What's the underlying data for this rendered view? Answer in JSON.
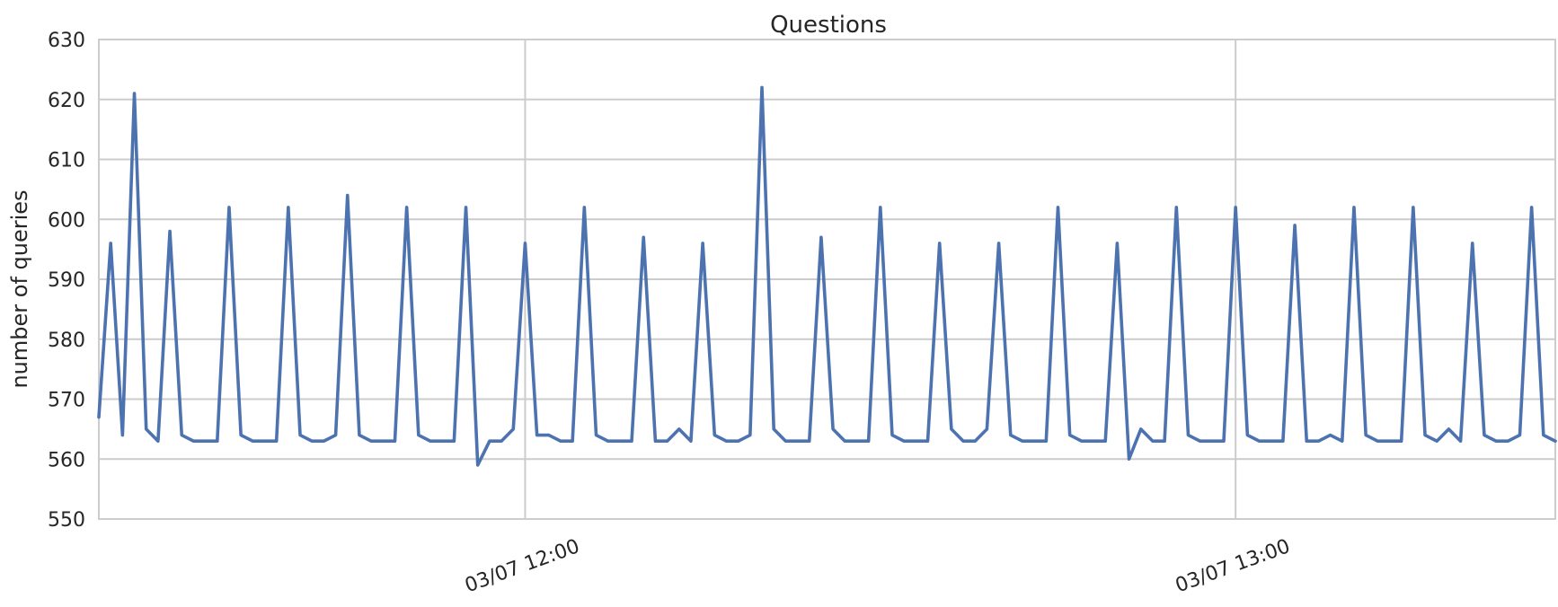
{
  "chart_data": {
    "type": "line",
    "title": "Questions",
    "xlabel": "",
    "ylabel": "number of queries",
    "ylim": [
      550,
      630
    ],
    "yticks": [
      550,
      560,
      570,
      580,
      590,
      600,
      610,
      620,
      630
    ],
    "x_range": [
      "03/07 11:24:00",
      "03/07 13:27:00"
    ],
    "x_sample_interval": "1 min",
    "xticks": [
      {
        "x": "03/07 12:00",
        "label": "03/07 12:00"
      },
      {
        "x": "03/07 13:00",
        "label": "03/07 13:00"
      }
    ],
    "grid": true,
    "color": "#4c72b0",
    "series": [
      {
        "values": [
          567,
          596,
          564,
          621,
          565,
          563,
          598,
          564,
          563,
          563,
          563,
          602,
          564,
          563,
          563,
          563,
          602,
          564,
          563,
          563,
          564,
          604,
          564,
          563,
          563,
          563,
          602,
          564,
          563,
          563,
          563,
          602,
          559,
          563,
          563,
          565,
          596,
          564,
          564,
          563,
          563,
          602,
          564,
          563,
          563,
          563,
          597,
          563,
          563,
          565,
          563,
          596,
          564,
          563,
          563,
          564,
          622,
          565,
          563,
          563,
          563,
          597,
          565,
          563,
          563,
          563,
          602,
          564,
          563,
          563,
          563,
          596,
          565,
          563,
          563,
          565,
          596,
          564,
          563,
          563,
          563,
          602,
          564,
          563,
          563,
          563,
          596,
          560,
          565,
          563,
          563,
          602,
          564,
          563,
          563,
          563,
          602,
          564,
          563,
          563,
          563,
          599,
          563,
          563,
          564,
          563,
          602,
          564,
          563,
          563,
          563,
          602,
          564,
          563,
          565,
          563,
          596,
          564,
          563,
          563,
          564,
          602,
          564,
          563
        ]
      }
    ]
  }
}
